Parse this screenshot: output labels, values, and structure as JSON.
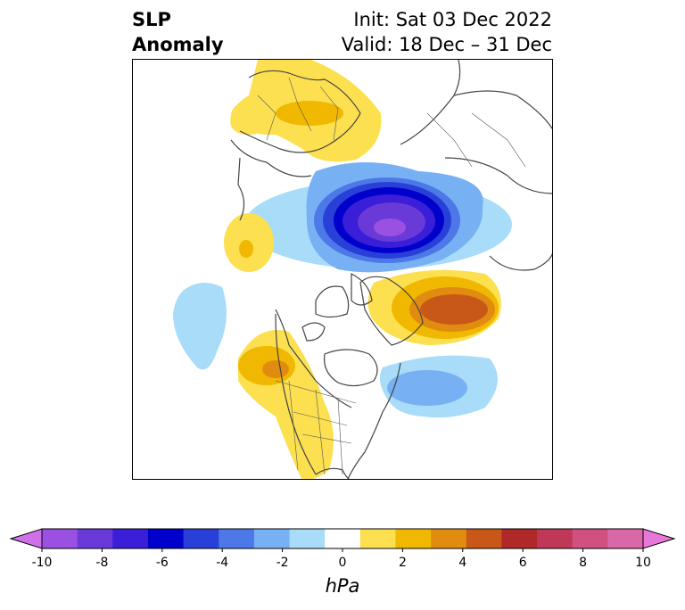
{
  "title": {
    "variable_line1": "SLP",
    "variable_line2": "Anomaly",
    "init_line": "Init: Sat 03 Dec 2022",
    "valid_line": "Valid: 18 Dec – 31 Dec"
  },
  "colorbar": {
    "units": "hPa",
    "ticks": [
      "-10",
      "-8",
      "-6",
      "-4",
      "-2",
      "0",
      "2",
      "4",
      "6",
      "8",
      "10"
    ],
    "levels": [
      -10,
      -9,
      -8,
      -7,
      -6,
      -5,
      -4,
      -3,
      -2,
      -1,
      1,
      2,
      3,
      4,
      5,
      6,
      7,
      8,
      9,
      10
    ],
    "colors": [
      "#d070e8",
      "#9a50e0",
      "#6a3ad8",
      "#3a1ed8",
      "#0000cc",
      "#2840d8",
      "#4c78e8",
      "#78b0f4",
      "#a8dcf8",
      "#ffffff",
      "#fce050",
      "#f0b800",
      "#e08c10",
      "#c85818",
      "#b02828",
      "#c03858",
      "#d05080",
      "#d868a8",
      "#e878d8"
    ],
    "extend": "both"
  },
  "map": {
    "projection": "north-polar-stereographic",
    "region": "North America / Arctic",
    "anomaly_centers": [
      {
        "feature": "negative",
        "region": "Arctic Ocean / Siberian side",
        "level_hpa": -10
      },
      {
        "feature": "positive",
        "region": "Greenland / Baffin Bay",
        "level_hpa": 5
      },
      {
        "feature": "positive",
        "region": "Pacific Northwest / Western Canada",
        "level_hpa": 4
      },
      {
        "feature": "positive",
        "region": "Europe / Scandinavia",
        "level_hpa": 3
      },
      {
        "feature": "positive",
        "region": "Southern Europe / Mediterranean",
        "level_hpa": 3
      },
      {
        "feature": "negative",
        "region": "North Atlantic",
        "level_hpa": -3
      },
      {
        "feature": "negative",
        "region": "North Pacific",
        "level_hpa": -2
      }
    ]
  }
}
